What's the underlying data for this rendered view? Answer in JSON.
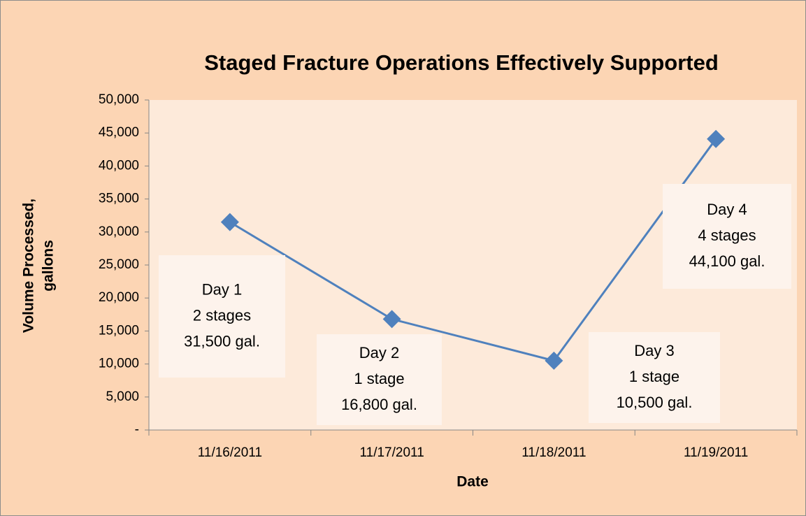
{
  "chart_data": {
    "type": "line",
    "title": "Staged Fracture Operations Effectively Supported",
    "xlabel": "Date",
    "ylabel": [
      "Volume Processed,",
      "gallons"
    ],
    "categories": [
      "11/16/2011",
      "11/17/2011",
      "11/18/2011",
      "11/19/2011"
    ],
    "series": [
      {
        "name": "Volume Processed",
        "color": "#4f81bd",
        "values": [
          31500,
          16800,
          10500,
          44100
        ]
      }
    ],
    "ylim": [
      0,
      50000
    ],
    "yticks": [
      {
        "value": 0,
        "label": "-"
      },
      {
        "value": 5000,
        "label": "5,000"
      },
      {
        "value": 10000,
        "label": "10,000"
      },
      {
        "value": 15000,
        "label": "15,000"
      },
      {
        "value": 20000,
        "label": "20,000"
      },
      {
        "value": 25000,
        "label": "25,000"
      },
      {
        "value": 30000,
        "label": "30,000"
      },
      {
        "value": 35000,
        "label": "35,000"
      },
      {
        "value": 40000,
        "label": "40,000"
      },
      {
        "value": 45000,
        "label": "45,000"
      },
      {
        "value": 50000,
        "label": "50,000"
      }
    ],
    "grid": false,
    "annotations": [
      [
        "Day 1",
        "2 stages",
        "31,500 gal."
      ],
      [
        "Day 2",
        "1 stage",
        "16,800 gal."
      ],
      [
        "Day 3",
        "1 stage",
        "10,500 gal."
      ],
      [
        "Day 4",
        "4 stages",
        "44,100 gal."
      ]
    ]
  }
}
